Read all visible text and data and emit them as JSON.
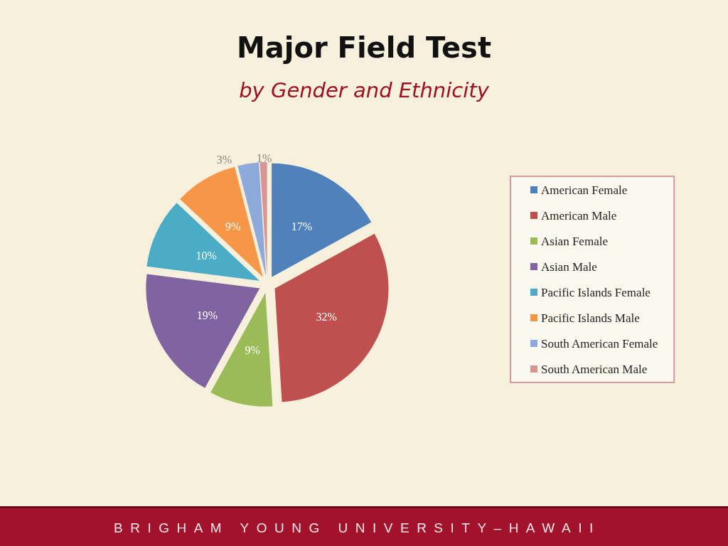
{
  "chart_data": {
    "type": "pie",
    "title": "Major Field Test",
    "subtitle": "by Gender and Ethnicity",
    "categories": [
      "American Female",
      "American Male",
      "Asian Female",
      "Asian Male",
      "Pacific Islands Female",
      "Pacific Islands Male",
      "South American Female",
      "South American Male"
    ],
    "values": [
      17,
      32,
      9,
      19,
      10,
      9,
      3,
      1
    ],
    "colors": [
      "#4f81bd",
      "#c0504d",
      "#9bbb59",
      "#8064a2",
      "#4bacc6",
      "#f79646",
      "#8eaadb",
      "#d99694"
    ],
    "value_labels": [
      "17%",
      "32%",
      "9%",
      "19%",
      "10%",
      "9%",
      "3%",
      "1%"
    ],
    "legend": "right",
    "annotations": [
      "BRIGHAM YOUNG UNIVERSITY–HAWAII"
    ]
  }
}
